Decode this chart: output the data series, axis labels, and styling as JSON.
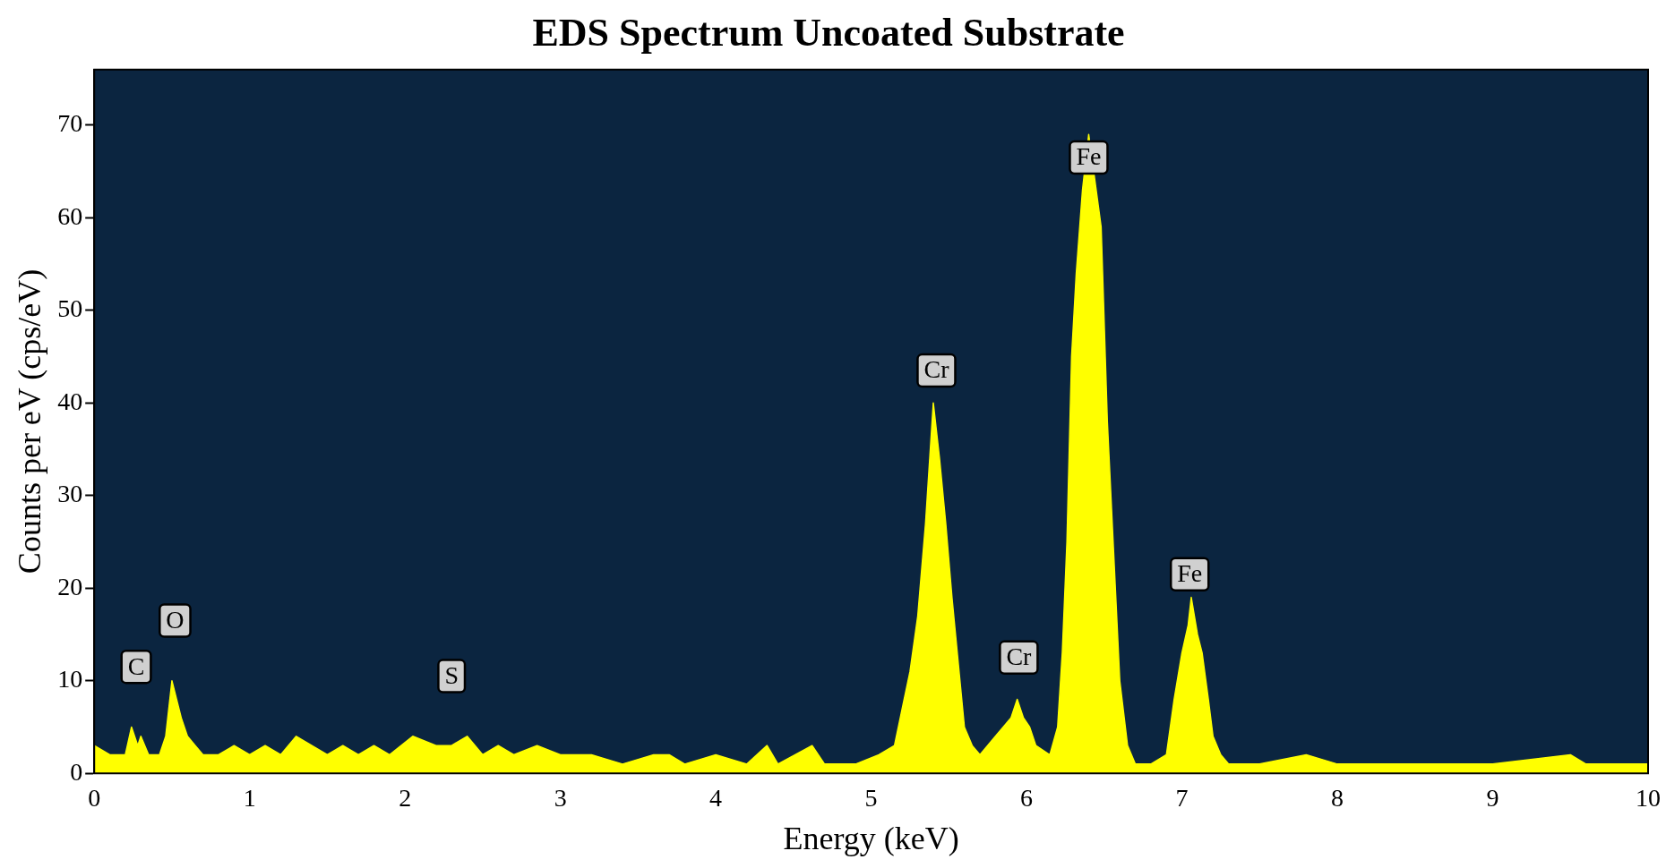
{
  "chart_data": {
    "type": "area",
    "title": "EDS Spectrum Uncoated Substrate",
    "xlabel": "Energy (keV)",
    "ylabel": "Counts per eV (cps/eV)",
    "xlim": [
      0,
      10
    ],
    "xticks": [
      0,
      1,
      2,
      3,
      4,
      5,
      6,
      7,
      8,
      9,
      10
    ],
    "ylim": [
      0,
      76
    ],
    "yticks": [
      0,
      10,
      20,
      30,
      40,
      50,
      60,
      70
    ],
    "grid": false,
    "legend": false,
    "marker": "none",
    "series": [
      {
        "color": "#ffff00",
        "x": [
          0,
          0.1,
          0.2,
          0.24,
          0.28,
          0.3,
          0.35,
          0.42,
          0.46,
          0.5,
          0.53,
          0.56,
          0.6,
          0.65,
          0.7,
          0.8,
          0.9,
          1.0,
          1.1,
          1.2,
          1.3,
          1.4,
          1.5,
          1.6,
          1.7,
          1.8,
          1.9,
          2.05,
          2.2,
          2.3,
          2.4,
          2.5,
          2.6,
          2.7,
          2.85,
          3.0,
          3.2,
          3.4,
          3.6,
          3.7,
          3.8,
          4.0,
          4.2,
          4.33,
          4.4,
          4.62,
          4.7,
          4.9,
          5.05,
          5.15,
          5.2,
          5.25,
          5.3,
          5.35,
          5.4,
          5.44,
          5.48,
          5.52,
          5.56,
          5.6,
          5.65,
          5.7,
          5.8,
          5.85,
          5.9,
          5.94,
          5.98,
          6.02,
          6.06,
          6.15,
          6.2,
          6.23,
          6.26,
          6.29,
          6.32,
          6.36,
          6.4,
          6.44,
          6.48,
          6.52,
          6.56,
          6.6,
          6.65,
          6.7,
          6.8,
          6.9,
          6.95,
          7.0,
          7.04,
          7.06,
          7.1,
          7.13,
          7.17,
          7.2,
          7.25,
          7.3,
          7.5,
          7.8,
          8.0,
          8.2,
          8.4,
          8.6,
          9.0,
          9.5,
          9.6,
          10
        ],
        "values": [
          3,
          2,
          2,
          5,
          3,
          4,
          2,
          2,
          4,
          10,
          8,
          6,
          4,
          3,
          2,
          2,
          3,
          2,
          3,
          2,
          4,
          3,
          2,
          3,
          2,
          3,
          2,
          4,
          3,
          3,
          4,
          2,
          3,
          2,
          3,
          2,
          2,
          1,
          2,
          2,
          1,
          2,
          1,
          3,
          1,
          3,
          1,
          1,
          2,
          3,
          7,
          11,
          17,
          27,
          40,
          34,
          27,
          19,
          12,
          5,
          3,
          2,
          4,
          5,
          6,
          8,
          6,
          5,
          3,
          2,
          5,
          13,
          25,
          45,
          54,
          63,
          69,
          64,
          59,
          38,
          24,
          10,
          3,
          1,
          1,
          2,
          8,
          13,
          16,
          19,
          15,
          13,
          8,
          4,
          2,
          1,
          1,
          2,
          1,
          1,
          1,
          1,
          1,
          2,
          1,
          1
        ]
      }
    ],
    "annotations": [
      {
        "text": "C",
        "x": 0.27,
        "y": 11.5
      },
      {
        "text": "O",
        "x": 0.52,
        "y": 16.5
      },
      {
        "text": "S",
        "x": 2.3,
        "y": 10.5
      },
      {
        "text": "Cr",
        "x": 5.42,
        "y": 43.5
      },
      {
        "text": "Cr",
        "x": 5.95,
        "y": 12.5
      },
      {
        "text": "Fe",
        "x": 6.4,
        "y": 66.5
      },
      {
        "text": "Fe",
        "x": 7.05,
        "y": 21.5
      }
    ]
  }
}
